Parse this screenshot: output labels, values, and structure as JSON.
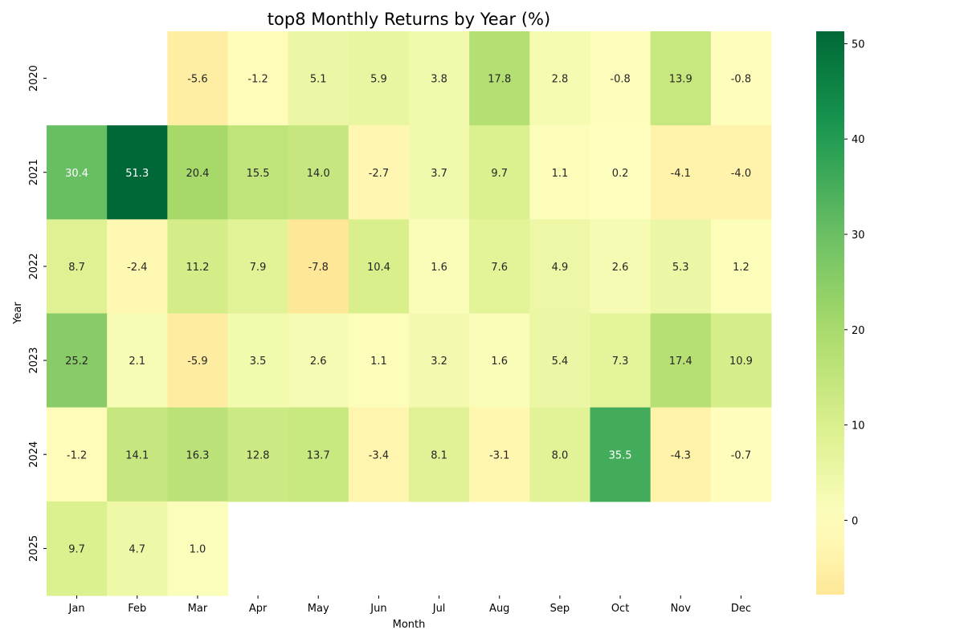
{
  "chart_data": {
    "type": "heatmap",
    "title": "top8 Monthly Returns by Year (%)",
    "xlabel": "Month",
    "ylabel": "Year",
    "months": [
      "Jan",
      "Feb",
      "Mar",
      "Apr",
      "May",
      "Jun",
      "Jul",
      "Aug",
      "Sep",
      "Oct",
      "Nov",
      "Dec"
    ],
    "years": [
      "2020",
      "2021",
      "2022",
      "2023",
      "2024",
      "2025"
    ],
    "values": [
      [
        null,
        null,
        -5.6,
        -1.2,
        5.1,
        5.9,
        3.8,
        17.8,
        2.8,
        -0.8,
        13.9,
        -0.8
      ],
      [
        30.4,
        51.3,
        20.4,
        15.5,
        14.0,
        -2.7,
        3.7,
        9.7,
        1.1,
        0.2,
        -4.1,
        -4.0
      ],
      [
        8.7,
        -2.4,
        11.2,
        7.9,
        -7.8,
        10.4,
        1.6,
        7.6,
        4.9,
        2.6,
        5.3,
        1.2
      ],
      [
        25.2,
        2.1,
        -5.9,
        3.5,
        2.6,
        1.1,
        3.2,
        1.6,
        5.4,
        7.3,
        17.4,
        10.9
      ],
      [
        -1.2,
        14.1,
        16.3,
        12.8,
        13.7,
        -3.4,
        8.1,
        -3.1,
        8.0,
        35.5,
        -4.3,
        -0.7
      ],
      [
        9.7,
        4.7,
        1.0,
        null,
        null,
        null,
        null,
        null,
        null,
        null,
        null,
        null
      ]
    ],
    "colorbar": {
      "min": -7.8,
      "max": 51.3,
      "center": 0,
      "ticks": [
        0,
        10,
        20,
        30,
        40,
        50
      ]
    },
    "colormap": "RdYlGn",
    "grid": false
  }
}
